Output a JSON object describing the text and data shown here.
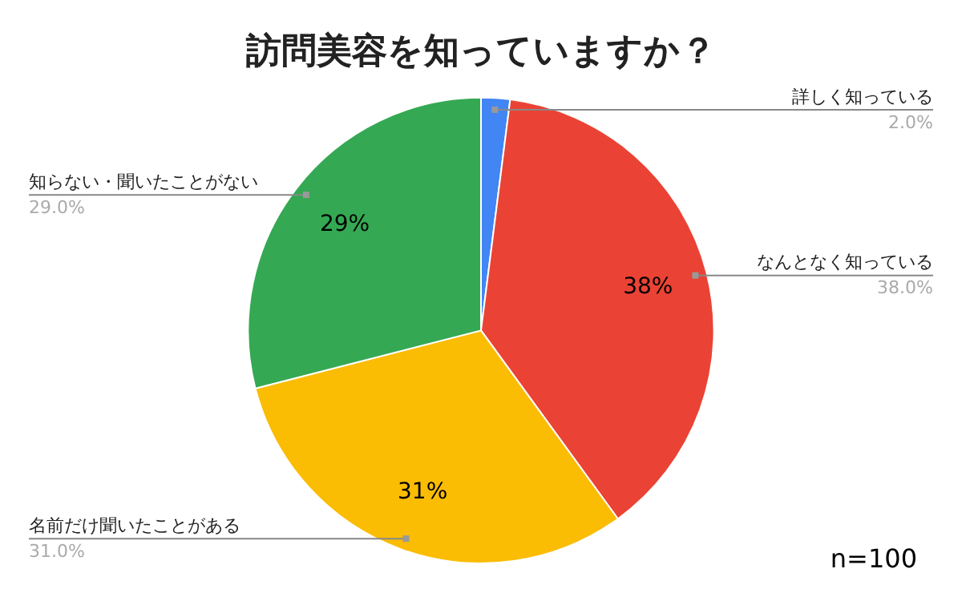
{
  "chart_data": {
    "type": "pie",
    "title": "訪問美容を知っていますか？",
    "categories": [
      "詳しく知っている",
      "なんとなく知っている",
      "名前だけ聞いたことがある",
      "知らない・聞いたことがない"
    ],
    "values": [
      2.0,
      38.0,
      31.0,
      29.0
    ],
    "colors": [
      "#4285f4",
      "#ea4335",
      "#fbbc04",
      "#34a853"
    ],
    "value_labels": [
      "2.0%",
      "38.0%",
      "31.0%",
      "29.0%"
    ],
    "legend": false,
    "annotations": [
      {
        "text": "38%",
        "x": "なんとなく知っている"
      },
      {
        "text": "31%",
        "x": "名前だけ聞いたことがある"
      },
      {
        "text": "29%",
        "x": "知らない・聞いたことがない"
      },
      "n=100"
    ]
  }
}
